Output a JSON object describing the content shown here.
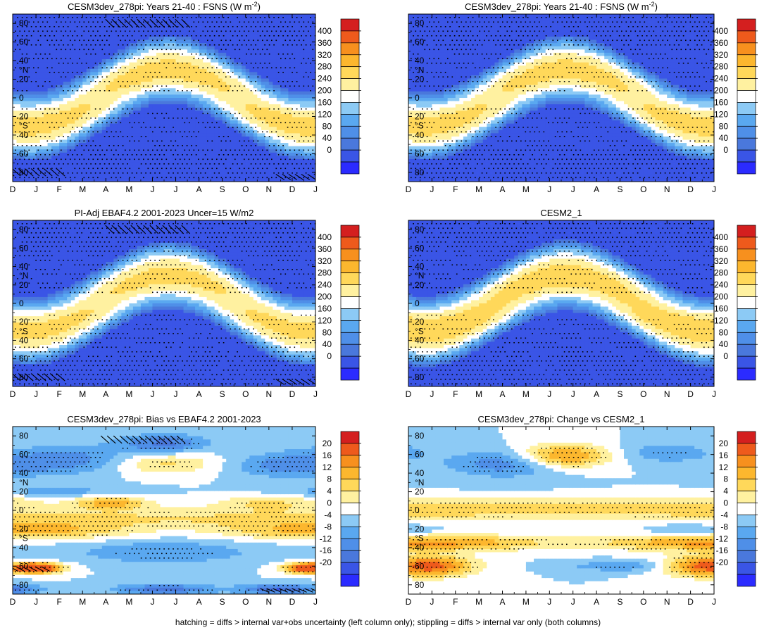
{
  "chart_data": [
    {
      "type": "heatmap",
      "title": "CESM3dev_278pi: Years 21-40 : FSNS (W m",
      "title_sup": "-2",
      "title_suffix": ")",
      "x_tick_labels": [
        "D",
        "J",
        "F",
        "M",
        "A",
        "M",
        "J",
        "J",
        "A",
        "S",
        "O",
        "N",
        "D",
        "J"
      ],
      "y_ticks": [
        80,
        60,
        40,
        20,
        0,
        -20,
        -40,
        -60,
        -80
      ],
      "y_tick_labels": [
        "80",
        "60",
        "40",
        "20",
        "0",
        "20",
        "40",
        "60",
        "80"
      ],
      "ylabel_north": "°N",
      "ylabel_south": "°S",
      "ylim": [
        -90,
        90
      ],
      "colorbar": {
        "levels": [
          0,
          40,
          80,
          120,
          160,
          200,
          240,
          280,
          320,
          360,
          400
        ],
        "labels": [
          "400",
          "360",
          "320",
          "280",
          "240",
          "200",
          "160",
          "120",
          "80",
          "40",
          "0"
        ],
        "min": -20,
        "max": 420
      },
      "field": "fsns",
      "hatching": true,
      "stippling": true
    },
    {
      "type": "heatmap",
      "title": "CESM3dev_278pi: Years 21-40 : FSNS (W m",
      "title_sup": "-2",
      "title_suffix": ")",
      "x_tick_labels": [
        "D",
        "J",
        "F",
        "M",
        "A",
        "M",
        "J",
        "J",
        "A",
        "S",
        "O",
        "N",
        "D",
        "J"
      ],
      "y_ticks": [
        80,
        60,
        40,
        20,
        0,
        -20,
        -40,
        -60,
        -80
      ],
      "y_tick_labels": [
        "80",
        "60",
        "40",
        "20",
        "0",
        "20",
        "40",
        "60",
        "80"
      ],
      "ylabel_north": "°N",
      "ylabel_south": "°S",
      "ylim": [
        -90,
        90
      ],
      "colorbar": {
        "levels": [
          0,
          40,
          80,
          120,
          160,
          200,
          240,
          280,
          320,
          360,
          400
        ],
        "labels": [
          "400",
          "360",
          "320",
          "280",
          "240",
          "200",
          "160",
          "120",
          "80",
          "40",
          "0"
        ],
        "min": -20,
        "max": 420
      },
      "field": "fsns",
      "hatching": false,
      "stippling": true
    },
    {
      "type": "heatmap",
      "title": "PI-Adj EBAF4.2 2001-2023 Uncer=15 W/m2",
      "title_sup": "",
      "title_suffix": "",
      "x_tick_labels": [
        "D",
        "J",
        "F",
        "M",
        "A",
        "M",
        "J",
        "J",
        "A",
        "S",
        "O",
        "N",
        "D",
        "J"
      ],
      "y_ticks": [
        80,
        60,
        40,
        20,
        0,
        -20,
        -40,
        -60,
        -80
      ],
      "y_tick_labels": [
        "80",
        "60",
        "40",
        "20",
        "0",
        "20",
        "40",
        "60",
        "80"
      ],
      "ylabel_north": "°N",
      "ylabel_south": "°S",
      "ylim": [
        -90,
        90
      ],
      "colorbar": {
        "levels": [
          0,
          40,
          80,
          120,
          160,
          200,
          240,
          280,
          320,
          360,
          400
        ],
        "labels": [
          "400",
          "360",
          "320",
          "280",
          "240",
          "200",
          "160",
          "120",
          "80",
          "40",
          "0"
        ],
        "min": -20,
        "max": 420
      },
      "field": "fsns_obs",
      "hatching": true,
      "stippling": true
    },
    {
      "type": "heatmap",
      "title": "CESM2_1",
      "title_sup": "",
      "title_suffix": "",
      "x_tick_labels": [
        "D",
        "J",
        "F",
        "M",
        "A",
        "M",
        "J",
        "J",
        "A",
        "S",
        "O",
        "N",
        "D",
        "J"
      ],
      "y_ticks": [
        80,
        60,
        40,
        20,
        0,
        -20,
        -40,
        -60,
        -80
      ],
      "y_tick_labels": [
        "80",
        "60",
        "40",
        "20",
        "0",
        "20",
        "40",
        "60",
        "80"
      ],
      "ylabel_north": "°N",
      "ylabel_south": "°S",
      "ylim": [
        -90,
        90
      ],
      "colorbar": {
        "levels": [
          0,
          40,
          80,
          120,
          160,
          200,
          240,
          280,
          320,
          360,
          400
        ],
        "labels": [
          "400",
          "360",
          "320",
          "280",
          "240",
          "200",
          "160",
          "120",
          "80",
          "40",
          "0"
        ],
        "min": -20,
        "max": 420
      },
      "field": "fsns_cesm2",
      "hatching": false,
      "stippling": true
    },
    {
      "type": "heatmap",
      "title": "CESM3dev_278pi: Bias vs EBAF4.2 2001-2023",
      "title_sup": "",
      "title_suffix": "",
      "x_tick_labels": [
        "D",
        "J",
        "F",
        "M",
        "A",
        "M",
        "J",
        "J",
        "A",
        "S",
        "O",
        "N",
        "D",
        "J"
      ],
      "y_ticks": [
        80,
        60,
        40,
        20,
        0,
        -20,
        -40,
        -60,
        -80
      ],
      "y_tick_labels": [
        "80",
        "60",
        "40",
        "20",
        "0",
        "20",
        "40",
        "60",
        "80"
      ],
      "ylabel_north": "°N",
      "ylabel_south": "°S",
      "ylim": [
        -90,
        90
      ],
      "colorbar": {
        "levels": [
          -20,
          -16,
          -12,
          -8,
          -4,
          0,
          4,
          8,
          12,
          16,
          20
        ],
        "labels": [
          "20",
          "16",
          "12",
          "8",
          "4",
          "0",
          "-4",
          "-8",
          "-12",
          "-16",
          "-20"
        ],
        "min": -22,
        "max": 22
      },
      "field": "bias",
      "hatching": true,
      "stippling": true
    },
    {
      "type": "heatmap",
      "title": "CESM3dev_278pi: Change vs CESM2_1",
      "title_sup": "",
      "title_suffix": "",
      "x_tick_labels": [
        "D",
        "J",
        "F",
        "M",
        "A",
        "M",
        "J",
        "J",
        "A",
        "S",
        "O",
        "N",
        "D",
        "J"
      ],
      "y_ticks": [
        80,
        60,
        40,
        20,
        0,
        -20,
        -40,
        -60,
        -80
      ],
      "y_tick_labels": [
        "80",
        "60",
        "40",
        "20",
        "0",
        "20",
        "40",
        "60",
        "80"
      ],
      "ylabel_north": "°N",
      "ylabel_south": "°S",
      "ylim": [
        -90,
        90
      ],
      "colorbar": {
        "levels": [
          -20,
          -16,
          -12,
          -8,
          -4,
          0,
          4,
          8,
          12,
          16,
          20
        ],
        "labels": [
          "20",
          "16",
          "12",
          "8",
          "4",
          "0",
          "-4",
          "-8",
          "-12",
          "-16",
          "-20"
        ],
        "min": -22,
        "max": 22
      },
      "field": "change",
      "hatching": false,
      "stippling": true
    }
  ],
  "palette": [
    "#2b2bff",
    "#3a55e6",
    "#4a78dc",
    "#4f8fe8",
    "#5aa8f0",
    "#8ccaf5",
    "#ffffff",
    "#fff1a0",
    "#ffd85a",
    "#fcb72e",
    "#f7901e",
    "#ee5a1c",
    "#d41f1f"
  ],
  "footer": "hatching = diffs > internal var+obs uncertainty (left column only); stippling = diffs > internal var only (both columns)"
}
